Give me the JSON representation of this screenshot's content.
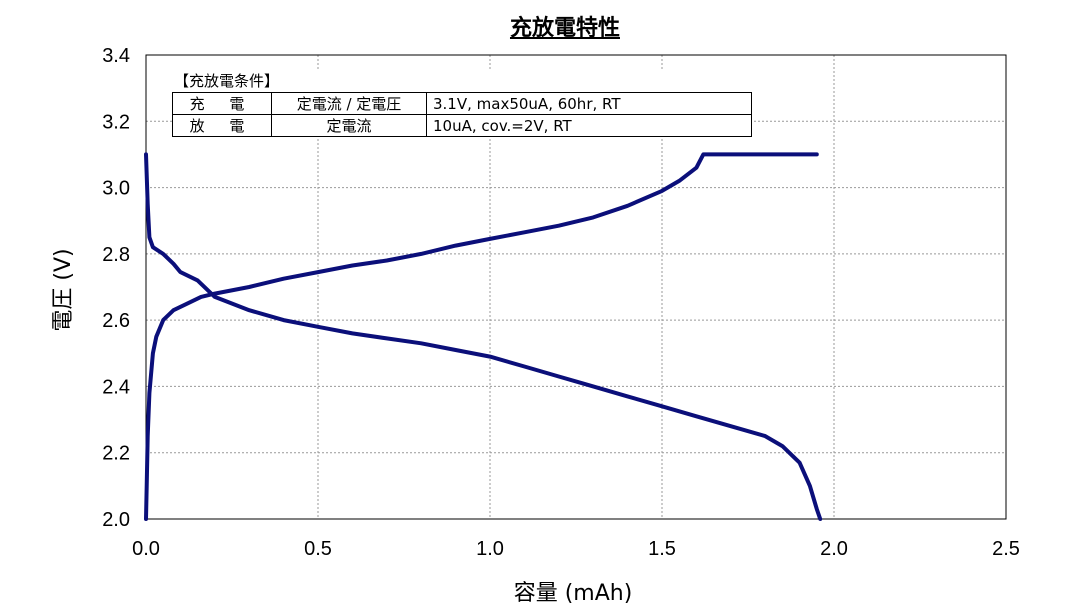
{
  "chart_data": {
    "type": "line",
    "title": "充放電特性",
    "xlabel": "容量 (mAh)",
    "ylabel": "電圧 (V)",
    "xlim": [
      0,
      2.5
    ],
    "ylim": [
      2.0,
      3.4
    ],
    "xticks": [
      "0.0",
      "0.5",
      "1.0",
      "1.5",
      "2.0",
      "2.5"
    ],
    "yticks": [
      "2.0",
      "2.2",
      "2.4",
      "2.6",
      "2.8",
      "3.0",
      "3.2",
      "3.4"
    ],
    "xtick_values": [
      0,
      0.5,
      1.0,
      1.5,
      2.0,
      2.5
    ],
    "ytick_values": [
      2.0,
      2.2,
      2.4,
      2.6,
      2.8,
      3.0,
      3.2,
      3.4
    ],
    "grid": true,
    "line_color": "#0b0f7a",
    "series": [
      {
        "x": [
          0.0,
          0.002,
          0.005,
          0.01,
          0.02,
          0.03,
          0.05,
          0.08,
          0.12,
          0.16,
          0.2,
          0.3,
          0.4,
          0.5,
          0.6,
          0.7,
          0.8,
          0.9,
          1.0,
          1.1,
          1.2,
          1.3,
          1.4,
          1.5,
          1.55,
          1.6,
          1.62,
          1.65,
          1.7,
          1.8,
          1.9,
          1.95
        ],
        "y": [
          2.0,
          2.1,
          2.25,
          2.38,
          2.5,
          2.55,
          2.6,
          2.63,
          2.65,
          2.67,
          2.68,
          2.7,
          2.725,
          2.745,
          2.765,
          2.78,
          2.8,
          2.825,
          2.845,
          2.865,
          2.885,
          2.91,
          2.945,
          2.99,
          3.02,
          3.06,
          3.1,
          3.1,
          3.1,
          3.1,
          3.1,
          3.1
        ]
      },
      {
        "x": [
          0.0,
          0.005,
          0.01,
          0.02,
          0.05,
          0.08,
          0.1,
          0.15,
          0.2,
          0.3,
          0.4,
          0.5,
          0.6,
          0.7,
          0.8,
          0.9,
          1.0,
          1.1,
          1.2,
          1.3,
          1.4,
          1.5,
          1.6,
          1.7,
          1.8,
          1.85,
          1.9,
          1.93,
          1.95,
          1.96
        ],
        "y": [
          3.1,
          2.95,
          2.85,
          2.82,
          2.8,
          2.77,
          2.745,
          2.72,
          2.67,
          2.63,
          2.6,
          2.58,
          2.56,
          2.545,
          2.53,
          2.51,
          2.49,
          2.46,
          2.43,
          2.4,
          2.37,
          2.34,
          2.31,
          2.28,
          2.25,
          2.22,
          2.17,
          2.1,
          2.03,
          2.0
        ]
      }
    ]
  },
  "conditions": {
    "title": "【充放電条件】",
    "rows": [
      {
        "label": "充 電",
        "mode": "定電流 / 定電圧",
        "detail": "3.1V,  max50uA,  60hr,   RT"
      },
      {
        "label": "放 電",
        "mode": "定電流",
        "detail": "10uA,  cov.=2V,   RT"
      }
    ]
  }
}
